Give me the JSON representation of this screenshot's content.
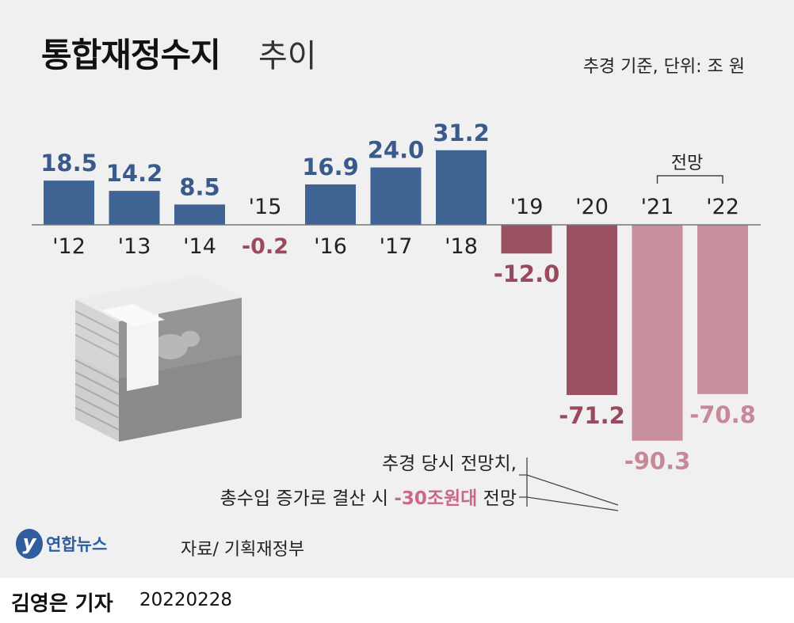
{
  "title": "통합재정수지",
  "subtitle": "추이",
  "unit_note": "추경 기준, 단위: 조 원",
  "forecast_label": "전망",
  "annotation": {
    "line1": "추경 당시 전망치,",
    "line2_pre": "총수입 증가로 결산 시 ",
    "line2_highlight": "-30조원대",
    "line2_post": " 전망"
  },
  "logo_mark": "y",
  "logo_text": "연합뉴스",
  "source": "자료/ 기획재정부",
  "byline": {
    "name": "김영은 기자",
    "date": "20220228"
  },
  "colors": {
    "positive": "#3f6494",
    "negative_actual": "#9a5263",
    "negative_forecast": "#c78e9c",
    "positive_label": "#3a5a8c",
    "negative_label_actual": "#9a4a5e",
    "negative_label_forecast": "#c88898"
  },
  "chart_data": {
    "type": "bar",
    "categories": [
      "'12",
      "'13",
      "'14",
      "'15",
      "'16",
      "'17",
      "'18",
      "'19",
      "'20",
      "'21",
      "'22"
    ],
    "values": [
      18.5,
      14.2,
      8.5,
      -0.2,
      16.9,
      24.0,
      31.2,
      -12.0,
      -71.2,
      -90.3,
      -70.8
    ],
    "value_labels": [
      "18.5",
      "14.2",
      "8.5",
      "-0.2",
      "16.9",
      "24.0",
      "31.2",
      "-12.0",
      "-71.2",
      "-90.3",
      "-70.8"
    ],
    "forecast": [
      false,
      false,
      false,
      false,
      false,
      false,
      false,
      false,
      false,
      true,
      true
    ],
    "title": "통합재정수지",
    "ylabel": "",
    "xlabel": ""
  }
}
